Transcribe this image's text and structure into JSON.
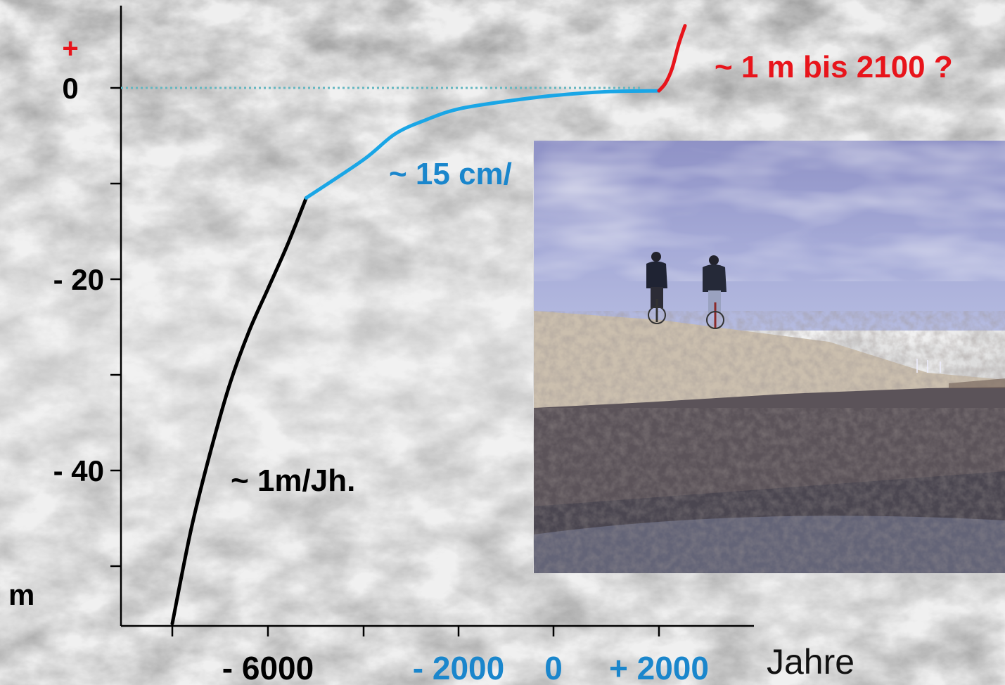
{
  "chart_data": {
    "type": "line",
    "title": "",
    "xlabel": "Jahre",
    "ylabel": "m",
    "x_ticks": [
      {
        "value": -7000,
        "label": ""
      },
      {
        "value": -6000,
        "label": "- 6000"
      },
      {
        "value": -5000,
        "label": ""
      },
      {
        "value": -2000,
        "label": "- 2000"
      },
      {
        "value": 0,
        "label": "0"
      },
      {
        "value": 2000,
        "label": "+ 2000"
      }
    ],
    "y_ticks": [
      {
        "value": 0,
        "label": "0"
      },
      {
        "value": -10,
        "label": ""
      },
      {
        "value": -20,
        "label": "- 20"
      },
      {
        "value": -30,
        "label": ""
      },
      {
        "value": -40,
        "label": "- 40"
      },
      {
        "value": -50,
        "label": ""
      }
    ],
    "y_plus_label": "+",
    "reference_line": {
      "y": 0,
      "style": "dotted",
      "color": "#63b7c0"
    },
    "series": [
      {
        "color": "#000000",
        "x": [
          -7000,
          -6800,
          -6600,
          -6400,
          -6200,
          -6000,
          -5800,
          -5600
        ],
        "y": [
          -56,
          -46,
          -38,
          -31,
          -25.5,
          -21,
          -16.5,
          -11.5
        ]
      },
      {
        "color": "#1aa6e6",
        "x": [
          -5600,
          -5000,
          -4000,
          -3000,
          -2000,
          -1000,
          0,
          1000,
          2000
        ],
        "y": [
          -11.5,
          -7.5,
          -4.8,
          -3.3,
          -2.2,
          -1.4,
          -0.8,
          -0.4,
          -0.3
        ]
      },
      {
        "color": "#e8141b",
        "x": [
          2000,
          2050,
          2100,
          2150,
          2200
        ],
        "y": [
          -0.3,
          0.5,
          2,
          4.5,
          6.5
        ]
      }
    ],
    "annotations": [
      {
        "text": "~ 1 m bis 2100 ?",
        "color": "#e8141b"
      },
      {
        "text": "~ 15 cm/",
        "color": "#1a86cc"
      },
      {
        "text": "~ 1m/Jh.",
        "color": "#000000"
      }
    ],
    "x_tick_colors": [
      "#000000",
      "#1a86cc",
      "#1a86cc",
      "#1a86cc"
    ],
    "inset_photo": "photo-cyclists-on-dike"
  }
}
